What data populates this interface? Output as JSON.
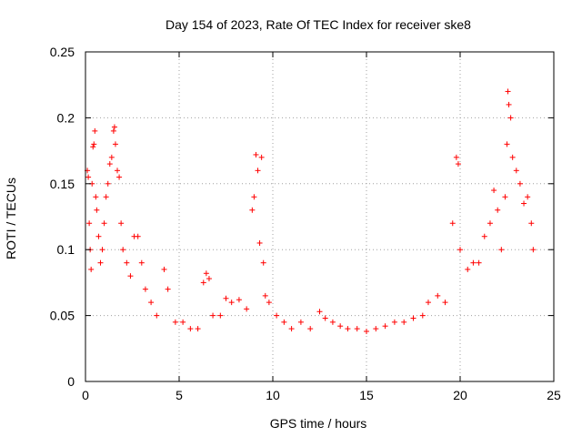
{
  "chart_data": {
    "type": "scatter",
    "title": "Day 154 of 2023, Rate Of TEC Index for receiver ske8",
    "xlabel": "GPS time / hours",
    "ylabel": "ROTI / TECUs",
    "xlim": [
      0,
      25
    ],
    "ylim": [
      0,
      0.25
    ],
    "x_ticks": [
      0,
      5,
      10,
      15,
      20,
      25
    ],
    "x_tick_labels": [
      "0",
      "5",
      "10",
      "15",
      "20",
      "25"
    ],
    "y_ticks": [
      0,
      0.05,
      0.1,
      0.15,
      0.2,
      0.25
    ],
    "y_tick_labels": [
      "0",
      "0.05",
      "0.1",
      "0.15",
      "0.2",
      "0.25"
    ],
    "grid": true,
    "marker": "+",
    "color": "#ff0000",
    "series": [
      {
        "name": "ROTI",
        "points": [
          [
            0.1,
            0.16
          ],
          [
            0.15,
            0.155
          ],
          [
            0.2,
            0.12
          ],
          [
            0.25,
            0.1
          ],
          [
            0.3,
            0.085
          ],
          [
            0.35,
            0.15
          ],
          [
            0.4,
            0.178
          ],
          [
            0.45,
            0.18
          ],
          [
            0.5,
            0.19
          ],
          [
            0.55,
            0.14
          ],
          [
            0.6,
            0.13
          ],
          [
            0.7,
            0.11
          ],
          [
            0.8,
            0.09
          ],
          [
            0.9,
            0.1
          ],
          [
            1.0,
            0.12
          ],
          [
            1.1,
            0.14
          ],
          [
            1.2,
            0.15
          ],
          [
            1.3,
            0.165
          ],
          [
            1.4,
            0.17
          ],
          [
            1.5,
            0.19
          ],
          [
            1.55,
            0.193
          ],
          [
            1.6,
            0.18
          ],
          [
            1.7,
            0.16
          ],
          [
            1.8,
            0.155
          ],
          [
            1.9,
            0.12
          ],
          [
            2.0,
            0.1
          ],
          [
            2.2,
            0.09
          ],
          [
            2.4,
            0.08
          ],
          [
            2.6,
            0.11
          ],
          [
            2.8,
            0.11
          ],
          [
            3.0,
            0.09
          ],
          [
            3.2,
            0.07
          ],
          [
            3.5,
            0.06
          ],
          [
            3.8,
            0.05
          ],
          [
            4.2,
            0.085
          ],
          [
            4.4,
            0.07
          ],
          [
            4.8,
            0.045
          ],
          [
            5.2,
            0.045
          ],
          [
            5.6,
            0.04
          ],
          [
            6.0,
            0.04
          ],
          [
            6.3,
            0.075
          ],
          [
            6.45,
            0.082
          ],
          [
            6.6,
            0.078
          ],
          [
            6.8,
            0.05
          ],
          [
            7.2,
            0.05
          ],
          [
            7.5,
            0.063
          ],
          [
            7.8,
            0.06
          ],
          [
            8.2,
            0.062
          ],
          [
            8.6,
            0.055
          ],
          [
            8.9,
            0.13
          ],
          [
            9.0,
            0.14
          ],
          [
            9.1,
            0.172
          ],
          [
            9.2,
            0.16
          ],
          [
            9.3,
            0.105
          ],
          [
            9.4,
            0.17
          ],
          [
            9.5,
            0.09
          ],
          [
            9.6,
            0.065
          ],
          [
            9.8,
            0.06
          ],
          [
            10.2,
            0.05
          ],
          [
            10.6,
            0.045
          ],
          [
            11.0,
            0.04
          ],
          [
            11.5,
            0.045
          ],
          [
            12.0,
            0.04
          ],
          [
            12.5,
            0.053
          ],
          [
            12.8,
            0.048
          ],
          [
            13.2,
            0.045
          ],
          [
            13.6,
            0.042
          ],
          [
            14.0,
            0.04
          ],
          [
            14.5,
            0.04
          ],
          [
            15.0,
            0.038
          ],
          [
            15.5,
            0.04
          ],
          [
            16.0,
            0.042
          ],
          [
            16.5,
            0.045
          ],
          [
            17.0,
            0.045
          ],
          [
            17.5,
            0.048
          ],
          [
            18.0,
            0.05
          ],
          [
            18.3,
            0.06
          ],
          [
            18.8,
            0.065
          ],
          [
            19.2,
            0.06
          ],
          [
            19.6,
            0.12
          ],
          [
            19.8,
            0.17
          ],
          [
            19.9,
            0.165
          ],
          [
            20.0,
            0.1
          ],
          [
            20.4,
            0.085
          ],
          [
            20.7,
            0.09
          ],
          [
            21.0,
            0.09
          ],
          [
            21.3,
            0.11
          ],
          [
            21.6,
            0.12
          ],
          [
            21.8,
            0.145
          ],
          [
            22.0,
            0.13
          ],
          [
            22.2,
            0.1
          ],
          [
            22.4,
            0.14
          ],
          [
            22.5,
            0.18
          ],
          [
            22.55,
            0.22
          ],
          [
            22.6,
            0.21
          ],
          [
            22.7,
            0.2
          ],
          [
            22.8,
            0.17
          ],
          [
            23.0,
            0.16
          ],
          [
            23.2,
            0.15
          ],
          [
            23.4,
            0.135
          ],
          [
            23.6,
            0.14
          ],
          [
            23.8,
            0.12
          ],
          [
            23.9,
            0.1
          ]
        ]
      }
    ]
  }
}
